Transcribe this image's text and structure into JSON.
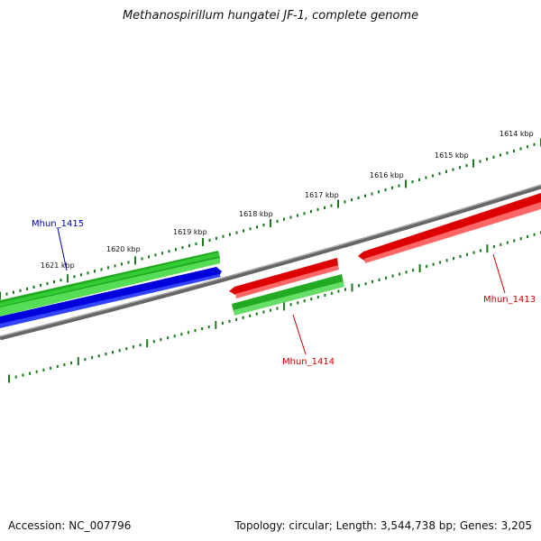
{
  "title": "Methanospirillum hungatei JF-1, complete genome",
  "footer": {
    "accession": "Accession: NC_007796",
    "summary": "Topology: circular; Length: 3,544,738 bp; Genes: 3,205"
  },
  "colors": {
    "background": "#ffffff",
    "backbone": "#777777",
    "tick": "#1a7a1a",
    "forward_cds": "#33cc33",
    "reverse_cds": "#ee1111",
    "blue_cds": "#0000ee",
    "label_blue": "#0000aa",
    "label_red": "#cc0000"
  },
  "scale": {
    "unit": "kbp",
    "labels": [
      "1614 kbp",
      "1615 kbp",
      "1616 kbp",
      "1617 kbp",
      "1618 kbp",
      "1619 kbp",
      "1620 kbp",
      "1621 kbp"
    ]
  },
  "genes": [
    {
      "label": "Mhun_1413",
      "strand": "reverse",
      "color": "red"
    },
    {
      "label": "Mhun_1414",
      "strand": "forward",
      "color": "green"
    },
    {
      "label": "Mhun_1415",
      "strand": "forward",
      "color": "blue"
    }
  ]
}
